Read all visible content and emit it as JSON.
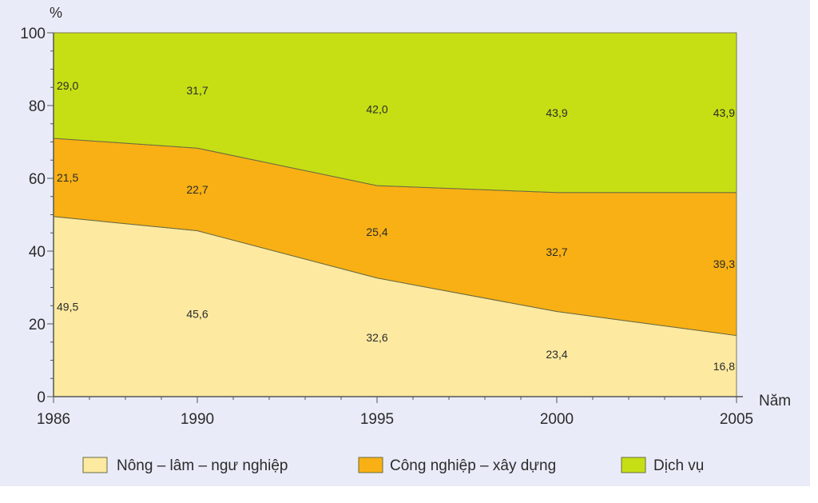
{
  "chart_data": {
    "type": "area",
    "stacked": true,
    "percent_stacked": true,
    "x": [
      1986,
      1990,
      1995,
      2000,
      2005
    ],
    "xlabel": "Năm",
    "ylabel": "%",
    "ylim": [
      0,
      100
    ],
    "yticks": [
      0,
      20,
      40,
      60,
      80,
      100
    ],
    "xticks": [
      1986,
      1990,
      1995,
      2000,
      2005
    ],
    "grid": false,
    "legend_position": "bottom",
    "series": [
      {
        "name": "Nông – lâm – ngư nghiệp",
        "color": "#fde9a0",
        "values": [
          49.5,
          45.6,
          32.6,
          23.4,
          16.8
        ],
        "labels": [
          "49,5",
          "45,6",
          "32,6",
          "23,4",
          "16,8"
        ]
      },
      {
        "name": "Công nghiệp – xây dựng",
        "color": "#f8b014",
        "values": [
          21.5,
          22.7,
          25.4,
          32.7,
          39.3
        ],
        "labels": [
          "21,5",
          "22,7",
          "25,4",
          "32,7",
          "39,3"
        ]
      },
      {
        "name": "Dịch vụ",
        "color": "#c6df14",
        "values": [
          29.0,
          31.7,
          42.0,
          43.9,
          43.9
        ],
        "labels": [
          "29,0",
          "31,7",
          "42,0",
          "43,9",
          "43,9"
        ]
      }
    ]
  }
}
